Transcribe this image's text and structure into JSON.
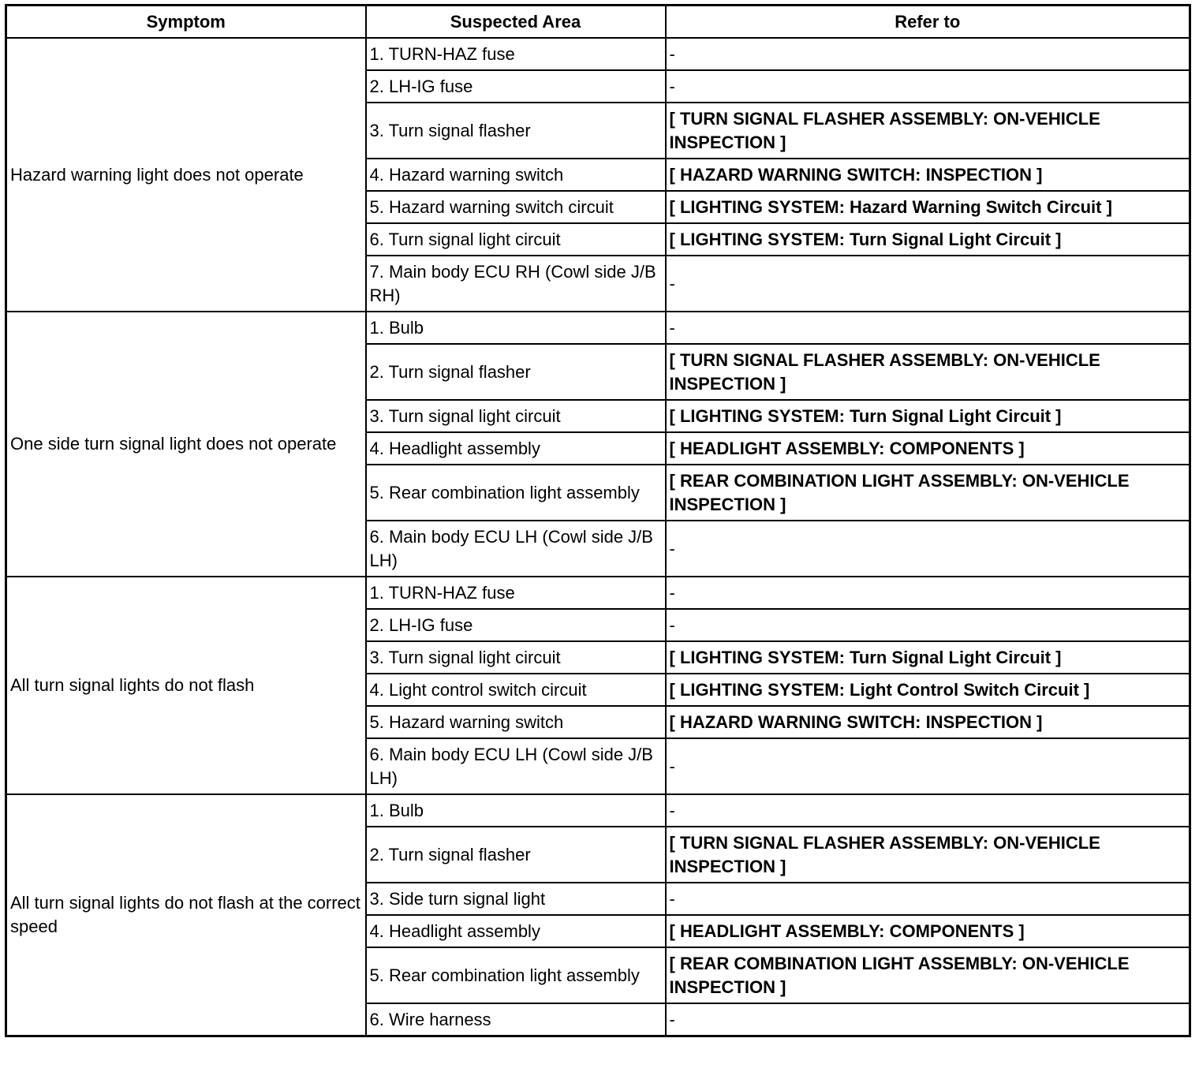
{
  "headers": {
    "symptom": "Symptom",
    "suspected_area": "Suspected Area",
    "refer_to": "Refer to"
  },
  "groups": [
    {
      "symptom": "Hazard warning light does not operate",
      "rows": [
        {
          "area": "1. TURN-HAZ fuse",
          "refer": "-"
        },
        {
          "area": "2. LH-IG fuse",
          "refer": "-"
        },
        {
          "area": "3. Turn signal flasher",
          "refer": "[ TURN SIGNAL FLASHER ASSEMBLY: ON-VEHICLE INSPECTION ]"
        },
        {
          "area": "4. Hazard warning switch",
          "refer": "[ HAZARD WARNING SWITCH: INSPECTION ]"
        },
        {
          "area": "5. Hazard warning switch circuit",
          "refer": "[ LIGHTING SYSTEM: Hazard Warning Switch Circuit ]"
        },
        {
          "area": "6. Turn signal light circuit",
          "refer": "[ LIGHTING SYSTEM: Turn Signal Light Circuit ]"
        },
        {
          "area": "7. Main body ECU RH (Cowl side J/B RH)",
          "refer": "-"
        }
      ]
    },
    {
      "symptom": "One side turn signal light does not operate",
      "rows": [
        {
          "area": "1. Bulb",
          "refer": "-"
        },
        {
          "area": "2. Turn signal flasher",
          "refer": "[ TURN SIGNAL FLASHER ASSEMBLY: ON-VEHICLE INSPECTION ]"
        },
        {
          "area": "3. Turn signal light circuit",
          "refer": "[ LIGHTING SYSTEM: Turn Signal Light Circuit ]"
        },
        {
          "area": "4. Headlight assembly",
          "refer": "[ HEADLIGHT ASSEMBLY: COMPONENTS ]"
        },
        {
          "area": "5. Rear combination light assembly",
          "refer": "[ REAR COMBINATION LIGHT ASSEMBLY: ON-VEHICLE INSPECTION ]"
        },
        {
          "area": "6. Main body ECU LH (Cowl side J/B LH)",
          "refer": "-"
        }
      ]
    },
    {
      "symptom": "All turn signal lights do not flash",
      "rows": [
        {
          "area": "1. TURN-HAZ fuse",
          "refer": "-"
        },
        {
          "area": "2. LH-IG fuse",
          "refer": "-"
        },
        {
          "area": "3. Turn signal light circuit",
          "refer": "[ LIGHTING SYSTEM: Turn Signal Light Circuit ]"
        },
        {
          "area": "4. Light control switch circuit",
          "refer": "[ LIGHTING SYSTEM: Light Control Switch Circuit ]"
        },
        {
          "area": "5. Hazard warning switch",
          "refer": "[ HAZARD WARNING SWITCH: INSPECTION ]"
        },
        {
          "area": "6. Main body ECU LH (Cowl side J/B LH)",
          "refer": "-"
        }
      ]
    },
    {
      "symptom": "All turn signal lights do not flash at the correct speed",
      "rows": [
        {
          "area": "1. Bulb",
          "refer": "-"
        },
        {
          "area": "2. Turn signal flasher",
          "refer": "[ TURN SIGNAL FLASHER ASSEMBLY: ON-VEHICLE INSPECTION ]"
        },
        {
          "area": "3. Side turn signal light",
          "refer": "-"
        },
        {
          "area": "4. Headlight assembly",
          "refer": "[ HEADLIGHT ASSEMBLY: COMPONENTS ]"
        },
        {
          "area": "5. Rear combination light assembly",
          "refer": "[ REAR COMBINATION LIGHT ASSEMBLY: ON-VEHICLE INSPECTION ]"
        },
        {
          "area": "6. Wire harness",
          "refer": "-"
        }
      ]
    }
  ]
}
